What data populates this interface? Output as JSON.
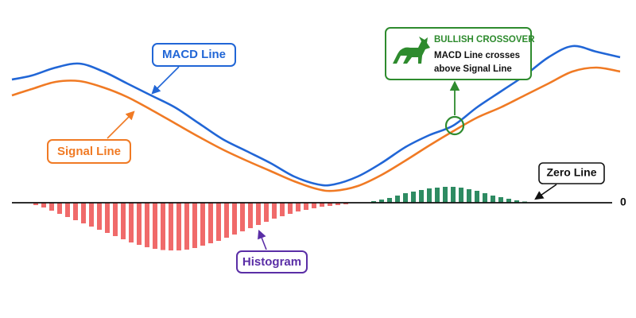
{
  "chart_data": {
    "type": "macd",
    "xlim": [
      0,
      800
    ],
    "ylim": [
      -8.5,
      21.5
    ],
    "yticks": [
      0
    ],
    "series": [
      {
        "name": "MACD Line",
        "color": "#2166d6",
        "x": [
          15,
          40,
          70,
          100,
          130,
          160,
          190,
          220,
          250,
          280,
          310,
          340,
          370,
          400,
          420,
          450,
          480,
          510,
          540,
          570,
          600,
          630,
          660,
          690,
          720,
          750,
          780
        ],
        "values": [
          15.5,
          16,
          17,
          17.5,
          16.5,
          15,
          13.5,
          12,
          10,
          8,
          6.5,
          5,
          3.3,
          2.3,
          2.3,
          3.3,
          5,
          7,
          8.5,
          9.7,
          12,
          14,
          16,
          18.3,
          19.7,
          19,
          18.3
        ]
      },
      {
        "name": "Signal Line",
        "color": "#f07a24",
        "x": [
          15,
          40,
          70,
          100,
          130,
          160,
          190,
          220,
          250,
          280,
          310,
          340,
          370,
          400,
          420,
          450,
          480,
          510,
          540,
          570,
          600,
          630,
          660,
          690,
          720,
          750,
          780
        ],
        "values": [
          13.5,
          14.3,
          15.2,
          15.3,
          14.5,
          13.3,
          11.7,
          10,
          8.3,
          6.7,
          5.3,
          4,
          2.7,
          1.7,
          1.5,
          2.1,
          3.5,
          5.3,
          7.2,
          9,
          10.7,
          12,
          13.5,
          15,
          16.5,
          17,
          16.5
        ]
      }
    ],
    "histogram": {
      "name": "Histogram",
      "negative_color": "#f06a6a",
      "positive_color": "#2e8b62",
      "x": [
        45,
        55,
        65,
        75,
        85,
        95,
        105,
        115,
        125,
        135,
        145,
        155,
        165,
        175,
        185,
        195,
        205,
        215,
        225,
        235,
        245,
        255,
        265,
        275,
        285,
        295,
        305,
        315,
        325,
        335,
        345,
        355,
        365,
        375,
        385,
        395,
        405,
        415,
        425,
        435,
        470,
        480,
        490,
        500,
        510,
        520,
        530,
        540,
        550,
        560,
        570,
        580,
        590,
        600,
        610,
        620,
        630,
        640,
        650,
        660
      ],
      "values": [
        -0.3,
        -0.6,
        -1,
        -1.4,
        -1.8,
        -2.2,
        -2.6,
        -3,
        -3.4,
        -3.8,
        -4.2,
        -4.6,
        -5,
        -5.3,
        -5.6,
        -5.8,
        -5.95,
        -6,
        -6,
        -5.9,
        -5.7,
        -5.4,
        -5.1,
        -4.8,
        -4.4,
        -4,
        -3.6,
        -3.2,
        -2.8,
        -2.4,
        -2,
        -1.7,
        -1.4,
        -1.1,
        -0.9,
        -0.7,
        -0.5,
        -0.4,
        -0.3,
        -0.2,
        0.2,
        0.4,
        0.6,
        0.9,
        1.2,
        1.4,
        1.6,
        1.8,
        1.9,
        2,
        2,
        1.9,
        1.7,
        1.5,
        1.2,
        0.9,
        0.7,
        0.5,
        0.3,
        0.15
      ]
    },
    "zero_line_label": "Zero Line",
    "crossover": {
      "title": "BULLISH CROSSOVER",
      "text": [
        "MACD Line crosses",
        "above Signal Line"
      ]
    }
  }
}
